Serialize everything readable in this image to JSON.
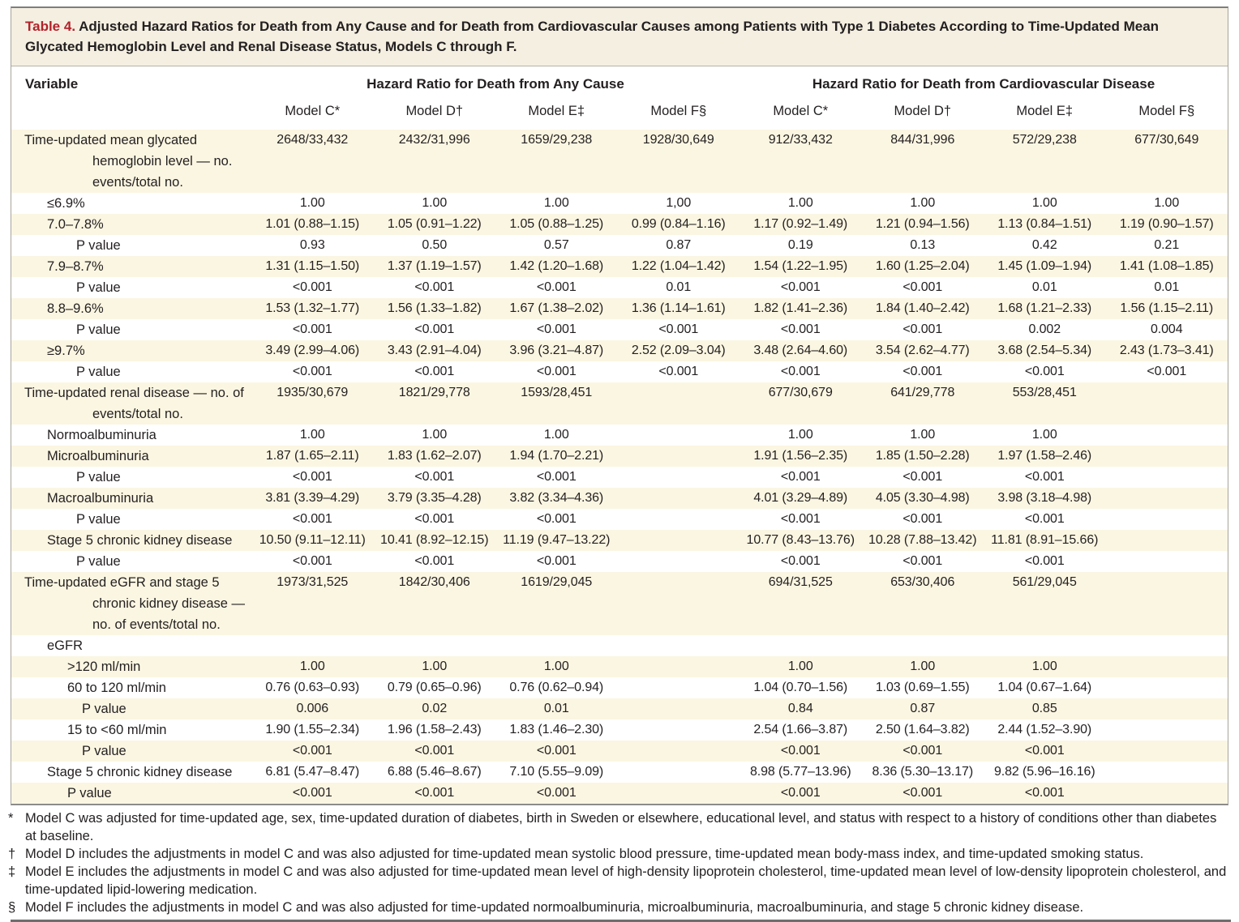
{
  "table": {
    "title_label": "Table 4.",
    "title_text": "Adjusted Hazard Ratios for Death from Any Cause and for Death from Cardiovascular Causes among Patients with Type 1 Diabetes According to Time-Updated Mean Glycated Hemoglobin Level and Renal Disease Status, Models C through F.",
    "variable_header": "Variable",
    "group_headers": [
      "Hazard Ratio for Death from Any Cause",
      "Hazard Ratio for Death from Cardiovascular Disease"
    ],
    "model_headers": [
      "Model C*",
      "Model D†",
      "Model E‡",
      "Model F§",
      "Model C*",
      "Model D†",
      "Model E‡",
      "Model F§"
    ],
    "colors": {
      "title_accent": "#B2222B",
      "row_stripe": "#FBF6E2",
      "title_band": "#F4EFE0"
    },
    "rows": [
      {
        "label": "Time-updated mean glycated hemoglobin level — no. events/total no.",
        "ind": 1,
        "values": [
          "2648/33,432",
          "2432/31,996",
          "1659/29,238",
          "1928/30,649",
          "912/33,432",
          "844/31,996",
          "572/29,238",
          "677/30,649"
        ]
      },
      {
        "label": "≤6.9%",
        "ind": 2,
        "values": [
          "1.00",
          "1.00",
          "1.00",
          "1,00",
          "1.00",
          "1.00",
          "1.00",
          "1.00"
        ]
      },
      {
        "label": "7.0–7.8%",
        "ind": 2,
        "values": [
          "1.01 (0.88–1.15)",
          "1.05 (0.91–1.22)",
          "1.05 (0.88–1.25)",
          "0.99 (0.84–1.16)",
          "1.17 (0.92–1.49)",
          "1.21 (0.94–1.56)",
          "1.13 (0.84–1.51)",
          "1.19 (0.90–1.57)"
        ]
      },
      {
        "label": "P value",
        "ind": 3,
        "values": [
          "0.93",
          "0.50",
          "0.57",
          "0.87",
          "0.19",
          "0.13",
          "0.42",
          "0.21"
        ]
      },
      {
        "label": "7.9–8.7%",
        "ind": 2,
        "values": [
          "1.31 (1.15–1.50)",
          "1.37 (1.19–1.57)",
          "1.42 (1.20–1.68)",
          "1.22 (1.04–1.42)",
          "1.54 (1.22–1.95)",
          "1.60 (1.25–2.04)",
          "1.45 (1.09–1.94)",
          "1.41 (1.08–1.85)"
        ]
      },
      {
        "label": "P value",
        "ind": 3,
        "values": [
          "<0.001",
          "<0.001",
          "<0.001",
          "0.01",
          "<0.001",
          "<0.001",
          "0.01",
          "0.01"
        ]
      },
      {
        "label": "8.8–9.6%",
        "ind": 2,
        "values": [
          "1.53 (1.32–1.77)",
          "1.56 (1.33–1.82)",
          "1.67 (1.38–2.02)",
          "1.36 (1.14–1.61)",
          "1.82 (1.41–2.36)",
          "1.84 (1.40–2.42)",
          "1.68 (1.21–2.33)",
          "1.56 (1.15–2.11)"
        ]
      },
      {
        "label": "P value",
        "ind": 3,
        "values": [
          "<0.001",
          "<0.001",
          "<0.001",
          "<0.001",
          "<0.001",
          "<0.001",
          "0.002",
          "0.004"
        ]
      },
      {
        "label": "≥9.7%",
        "ind": 2,
        "values": [
          "3.49 (2.99–4.06)",
          "3.43 (2.91–4.04)",
          "3.96 (3.21–4.87)",
          "2.52 (2.09–3.04)",
          "3.48 (2.64–4.60)",
          "3.54 (2.62–4.77)",
          "3.68 (2.54–5.34)",
          "2.43 (1.73–3.41)"
        ]
      },
      {
        "label": "P value",
        "ind": 3,
        "values": [
          "<0.001",
          "<0.001",
          "<0.001",
          "<0.001",
          "<0.001",
          "<0.001",
          "<0.001",
          "<0.001"
        ]
      },
      {
        "label": "Time-updated renal disease — no. of events/total no.",
        "ind": 1,
        "values": [
          "1935/30,679",
          "1821/29,778",
          "1593/28,451",
          "",
          "677/30,679",
          "641/29,778",
          "553/28,451",
          ""
        ]
      },
      {
        "label": "Normoalbuminuria",
        "ind": 2,
        "values": [
          "1.00",
          "1.00",
          "1.00",
          "",
          "1.00",
          "1.00",
          "1.00",
          ""
        ]
      },
      {
        "label": "Microalbuminuria",
        "ind": 2,
        "values": [
          "1.87 (1.65–2.11)",
          "1.83 (1.62–2.07)",
          "1.94 (1.70–2.21)",
          "",
          "1.91 (1.56–2.35)",
          "1.85 (1.50–2.28)",
          "1.97 (1.58–2.46)",
          ""
        ]
      },
      {
        "label": "P value",
        "ind": 3,
        "values": [
          "<0.001",
          "<0.001",
          "<0.001",
          "",
          "<0.001",
          "<0.001",
          "<0.001",
          ""
        ]
      },
      {
        "label": "Macroalbuminuria",
        "ind": 2,
        "values": [
          "3.81 (3.39–4.29)",
          "3.79 (3.35–4.28)",
          "3.82 (3.34–4.36)",
          "",
          "4.01 (3.29–4.89)",
          "4.05 (3.30–4.98)",
          "3.98 (3.18–4.98)",
          ""
        ]
      },
      {
        "label": "P value",
        "ind": 3,
        "values": [
          "<0.001",
          "<0.001",
          "<0.001",
          "",
          "<0.001",
          "<0.001",
          "<0.001",
          ""
        ]
      },
      {
        "label": "Stage 5 chronic kidney disease",
        "ind": 2,
        "values": [
          "10.50 (9.11–12.11)",
          "10.41 (8.92–12.15)",
          "11.19 (9.47–13.22)",
          "",
          "10.77 (8.43–13.76)",
          "10.28 (7.88–13.42)",
          "11.81 (8.91–15.66)",
          ""
        ]
      },
      {
        "label": "P value",
        "ind": 3,
        "values": [
          "<0.001",
          "<0.001",
          "<0.001",
          "",
          "<0.001",
          "<0.001",
          "<0.001",
          ""
        ]
      },
      {
        "label": "Time-updated eGFR and stage 5 chronic kidney disease — no. of events/total no.",
        "ind": 1,
        "values": [
          "1973/31,525",
          "1842/30,406",
          "1619/29,045",
          "",
          "694/31,525",
          "653/30,406",
          "561/29,045",
          ""
        ]
      },
      {
        "label": "eGFR",
        "ind": 2,
        "values": [
          "",
          "",
          "",
          "",
          "",
          "",
          "",
          ""
        ]
      },
      {
        "label": ">120 ml/min",
        "ind": 4,
        "values": [
          "1.00",
          "1.00",
          "1.00",
          "",
          "1.00",
          "1.00",
          "1.00",
          ""
        ]
      },
      {
        "label": "60 to 120 ml/min",
        "ind": 4,
        "values": [
          "0.76 (0.63–0.93)",
          "0.79 (0.65–0.96)",
          "0.76 (0.62–0.94)",
          "",
          "1.04 (0.70–1.56)",
          "1.03 (0.69–1.55)",
          "1.04 (0.67–1.64)",
          ""
        ]
      },
      {
        "label": "P value",
        "ind": 5,
        "values": [
          "0.006",
          "0.02",
          "0.01",
          "",
          "0.84",
          "0.87",
          "0.85",
          ""
        ]
      },
      {
        "label": "15 to <60 ml/min",
        "ind": 4,
        "values": [
          "1.90 (1.55–2.34)",
          "1.96 (1.58–2.43)",
          "1.83 (1.46–2.30)",
          "",
          "2.54 (1.66–3.87)",
          "2.50 (1.64–3.82)",
          "2.44 (1.52–3.90)",
          ""
        ]
      },
      {
        "label": "P value",
        "ind": 5,
        "values": [
          "<0.001",
          "<0.001",
          "<0.001",
          "",
          "<0.001",
          "<0.001",
          "<0.001",
          ""
        ]
      },
      {
        "label": "Stage 5 chronic kidney disease",
        "ind": 2,
        "values": [
          "6.81 (5.47–8.47)",
          "6.88 (5.46–8.67)",
          "7.10 (5.55–9.09)",
          "",
          "8.98 (5.77–13.96)",
          "8.36 (5.30–13.17)",
          "9.82 (5.96–16.16)",
          ""
        ]
      },
      {
        "label": "P value",
        "ind": 4,
        "values": [
          "<0.001",
          "<0.001",
          "<0.001",
          "",
          "<0.001",
          "<0.001",
          "<0.001",
          ""
        ]
      }
    ],
    "footnotes": [
      {
        "marker": "*",
        "text": "Model C was adjusted for time-updated age, sex, time-updated duration of diabetes, birth in Sweden or elsewhere, educational level, and status with respect to a history of conditions other than diabetes at baseline."
      },
      {
        "marker": "†",
        "text": "Model D includes the adjustments in model C and was also adjusted for time-updated mean systolic blood pressure, time-updated mean body-mass index, and time-updated smoking status."
      },
      {
        "marker": "‡",
        "text": "Model E includes the adjustments in model C and was also adjusted for time-updated mean level of high-density lipoprotein cholesterol, time-updated mean level of low-density lipoprotein cholesterol, and time-updated lipid-lowering medication."
      },
      {
        "marker": "§",
        "text": "Model F includes the adjustments in model C and was also adjusted for time-updated normoalbuminuria, microalbuminuria, macroalbuminuria, and stage 5 chronic kidney disease."
      }
    ]
  }
}
